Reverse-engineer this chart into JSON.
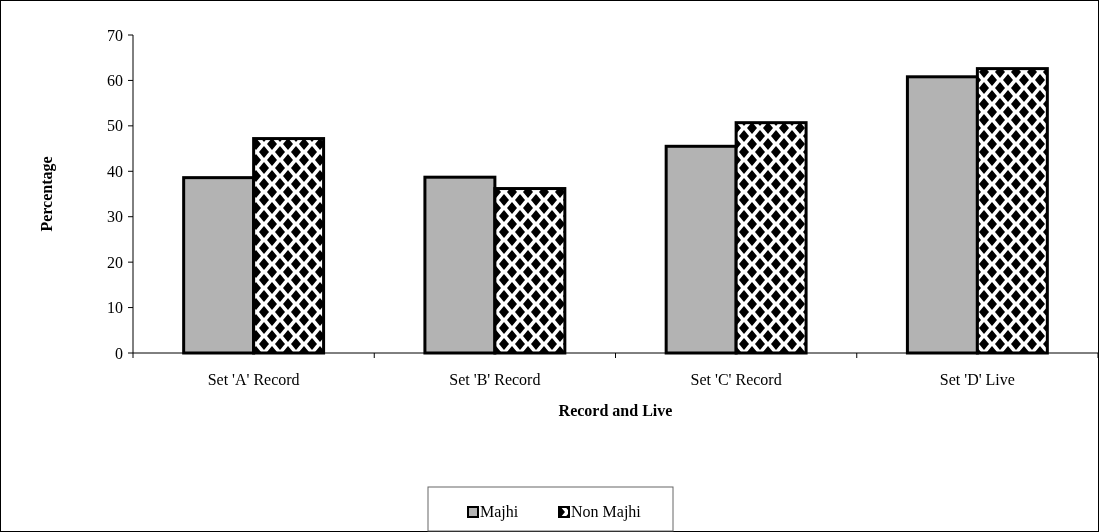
{
  "chart_data": {
    "type": "bar",
    "xlabel": "Record and Live",
    "ylabel": "Percentage",
    "categories": [
      "Set 'A' Record",
      "Set 'B' Record",
      "Set 'C' Record",
      "Set 'D' Live"
    ],
    "series": [
      {
        "name": "Majhi",
        "color": "#b3b3b3",
        "values": [
          38.6,
          38.7,
          45.5,
          60.8
        ]
      },
      {
        "name": "Non Majhi",
        "color": "#000000",
        "values": [
          47.2,
          36.2,
          50.7,
          62.6
        ]
      }
    ],
    "ylim": [
      0,
      70
    ],
    "yticks": [
      0,
      10,
      20,
      30,
      40,
      50,
      60,
      70
    ],
    "grid": false,
    "legend": "bottom"
  }
}
